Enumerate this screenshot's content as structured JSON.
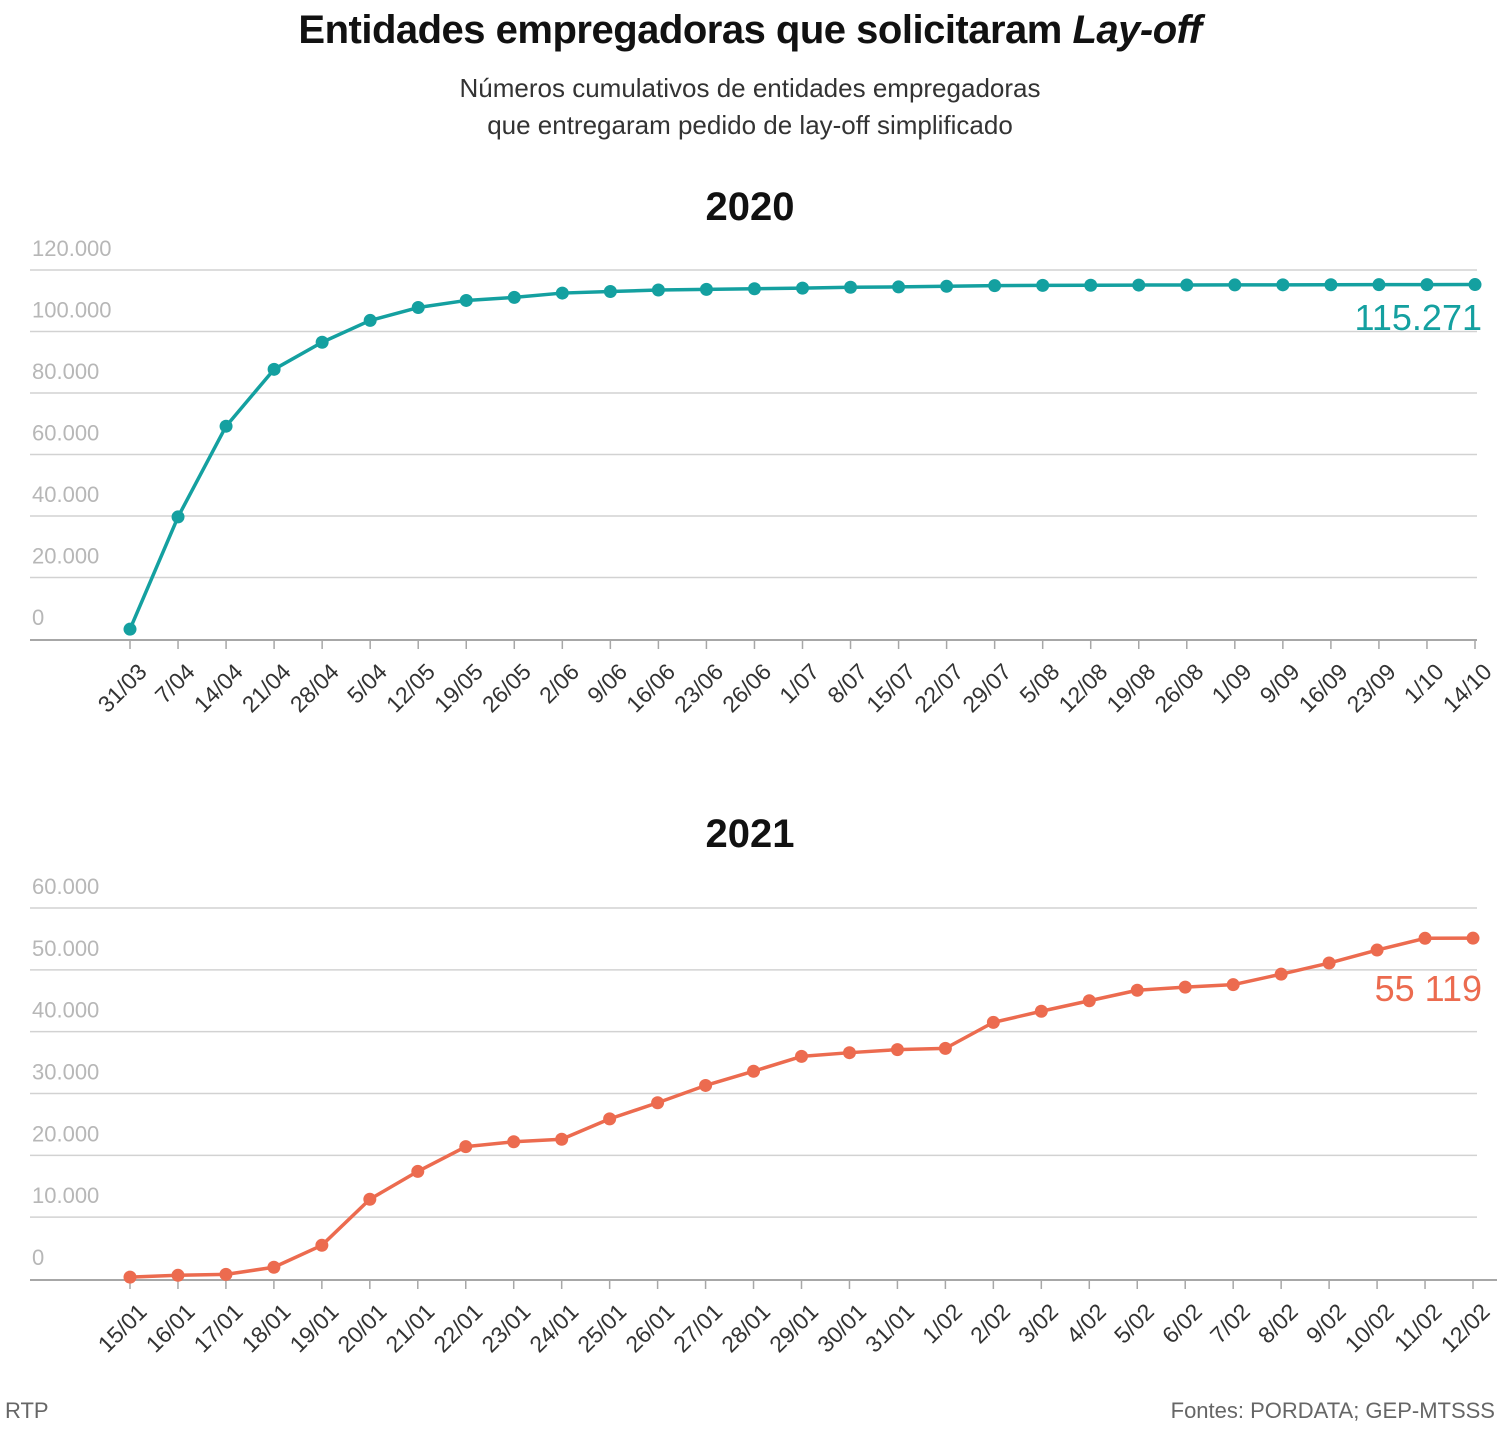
{
  "header": {
    "title_main": "Entidades empregadoras que solicitaram ",
    "title_italic": "Lay-off",
    "subtitle_line1": "Números cumulativos de entidades empregadoras",
    "subtitle_line2": "que entregaram pedido de lay-off simplificado"
  },
  "footer": {
    "source_left": "RTP",
    "source_right": "Fontes: PORDATA; GEP-MTSSS"
  },
  "chart_data": [
    {
      "type": "line",
      "title": "2020",
      "xlabel": "",
      "ylabel": "",
      "color": "#14a0a0",
      "ylim": [
        0,
        120000
      ],
      "yticks": [
        0,
        20000,
        40000,
        60000,
        80000,
        100000,
        120000
      ],
      "ytick_labels": [
        "0",
        "20.000",
        "40.000",
        "60.000",
        "80.000",
        "100.000",
        "120.000"
      ],
      "grid": true,
      "end_label": "115.271",
      "categories": [
        "31/03",
        "7/04",
        "14/04",
        "21/04",
        "28/04",
        "5/04",
        "12/05",
        "19/05",
        "26/05",
        "2/06",
        "9/06",
        "16/06",
        "23/06",
        "26/06",
        "1/07",
        "8/07",
        "15/07",
        "22/07",
        "29/07",
        "5/08",
        "12/08",
        "19/08",
        "26/08",
        "1/09",
        "9/09",
        "16/09",
        "23/09",
        "1/10",
        "14/10"
      ],
      "values": [
        3200,
        39700,
        69200,
        87700,
        96500,
        103600,
        107800,
        110100,
        111100,
        112500,
        113000,
        113500,
        113700,
        113900,
        114100,
        114400,
        114500,
        114700,
        114900,
        115000,
        115050,
        115100,
        115120,
        115150,
        115180,
        115200,
        115230,
        115250,
        115271
      ]
    },
    {
      "type": "line",
      "title": "2021",
      "xlabel": "",
      "ylabel": "",
      "color": "#ec6b4f",
      "ylim": [
        0,
        60000
      ],
      "yticks": [
        0,
        10000,
        20000,
        30000,
        40000,
        50000,
        60000
      ],
      "ytick_labels": [
        "0",
        "10.000",
        "20.000",
        "30.000",
        "40.000",
        "50.000",
        "60.000"
      ],
      "grid": true,
      "end_label": "55 119",
      "categories": [
        "15/01",
        "16/01",
        "17/01",
        "18/01",
        "19/01",
        "20/01",
        "21/01",
        "22/01",
        "23/01",
        "24/01",
        "25/01",
        "26/01",
        "27/01",
        "28/01",
        "29/01",
        "30/01",
        "31/01",
        "1/02",
        "2/02",
        "3/02",
        "4/02",
        "5/02",
        "6/02",
        "7/02",
        "8/02",
        "9/02",
        "10/02",
        "11/02",
        "12/02"
      ],
      "values": [
        300,
        600,
        750,
        1900,
        5450,
        12900,
        17400,
        21400,
        22200,
        22600,
        25900,
        28500,
        31300,
        33600,
        36000,
        36600,
        37100,
        37300,
        41500,
        43300,
        45000,
        46700,
        47200,
        47600,
        49300,
        51100,
        53200,
        55100,
        55119
      ]
    }
  ]
}
